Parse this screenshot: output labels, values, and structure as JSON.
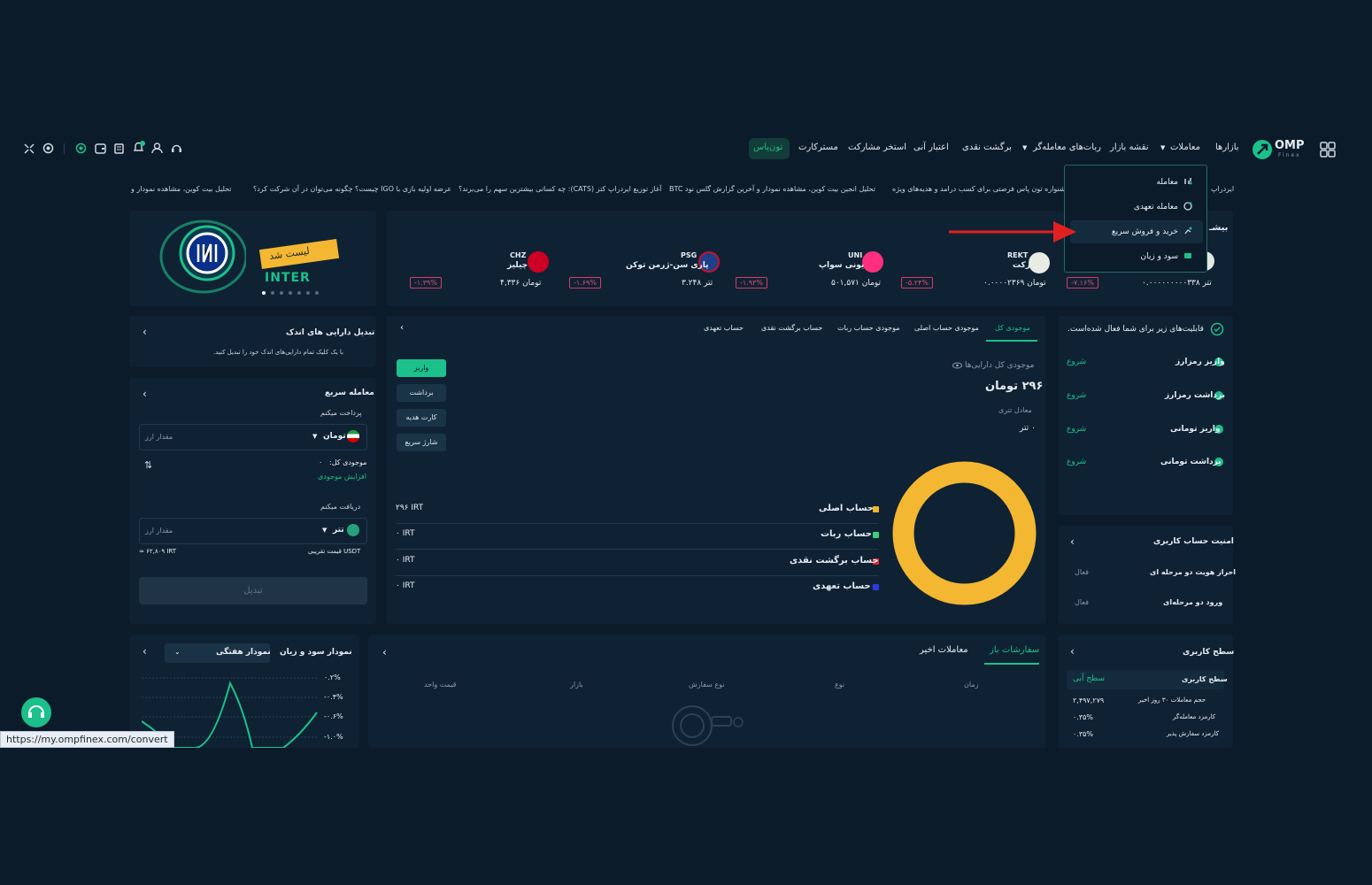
{
  "brand": {
    "logo_text": "OMP",
    "logo_sub": "Finex"
  },
  "nav": {
    "markets": "بازارها",
    "trades": "معاملات",
    "market_map": "نقشه بازار",
    "trading_bots": "ربات‌های معامله‌گر",
    "cashback": "برگشت نقدی",
    "instant_credit": "اعتبار آنی",
    "staking_pool": "استخر مشارکت",
    "mastercard": "مسترکارت",
    "toonpass": "تون‌پاس"
  },
  "ticker": [
    "تحلیل بیت کوین، مشاهده نمودار و",
    "عرضه اولیه بازی با IGO چیست؟ چگونه می‌توان در آن شرکت کرد؟",
    "آغاز توزیع ایردراپ کتز (CATS): چه کسانی بیشترین سهم را می‌برند؟",
    "تحلیل انجین بیت کوین، مشاهده نمودار و آخرین گزارش گلس نود BTC",
    "جشنواره تون پاس فرصتی برای کسب درامد و هدیه‌های ویژه",
    "ایردراپ"
  ],
  "dropdown": {
    "items": [
      "معامله",
      "معامله تعهدی",
      "خرید و فروش سریع",
      "سود و زیان"
    ]
  },
  "market_strip": {
    "section_title": "بیشـ",
    "coins": [
      {
        "symbol": "",
        "name": "",
        "price": "۰.۰۰۰۰۰۰۰۰۰۳۳۸ تتر",
        "change": "-۷.۱۶%"
      },
      {
        "symbol": "REKT",
        "name": "رکت",
        "price": "۰.۰۰۰۰۲۳۶۹ تومان",
        "change": "-۵.۲۴%"
      },
      {
        "symbol": "UNI",
        "name": "یونی سواپ",
        "price": "۵۰۱,۵۷۱ تومان",
        "change": "-۱.۹۳%"
      },
      {
        "symbol": "PSG",
        "name": "پاری سن-ژرمن توکن",
        "price": "۳.۲۴۸ تتر",
        "change": "-۱.۶۹%"
      },
      {
        "symbol": "CHZ",
        "name": "چیلیز",
        "price": "۴,۳۳۶ تومان",
        "change": "-۱.۳۹%"
      }
    ]
  },
  "banner": {
    "listed": "لیست شد",
    "coin": "INTER"
  },
  "activation": {
    "title": "قابلیت‌های زیر برای شما فعال شده‌است.",
    "items": [
      {
        "label": "واریز رمزارز",
        "action": "شروع"
      },
      {
        "label": "برداشت رمزارز",
        "action": "شروع"
      },
      {
        "label": "واریز تومانی",
        "action": "شروع"
      },
      {
        "label": "برداشت تومانی",
        "action": "شروع"
      }
    ]
  },
  "balance": {
    "tabs": [
      "موجودی کل",
      "موجودی حساب اصلی",
      "موجودی حساب ربات",
      "حساب برگشت نقدی",
      "حساب تعهدی"
    ],
    "total_label": "موجودی کل دارایی‌ها",
    "total_value": "۲۹۶ تومان",
    "tether_eq_label": "معادل تتری",
    "tether_eq_value": "۰ تتر",
    "buttons": [
      "واریز",
      "برداشت",
      "کارت هدیه",
      "شارژ سریع"
    ],
    "accounts": [
      {
        "name": "حساب اصلی",
        "value": "۲۹۶ IRT",
        "color": "#f0b92a"
      },
      {
        "name": "حساب ربات",
        "value": "۰ IRT",
        "color": "#3ad37a"
      },
      {
        "name": "حساب برگشت نقدی",
        "value": "۰ IRT",
        "color": "#e02828"
      },
      {
        "name": "حساب تعهدی",
        "value": "۰ IRT",
        "color": "#2a3be0"
      }
    ],
    "donut_color": "#f4b731"
  },
  "convert_small": {
    "title": "تبدیل دارایی های اندک",
    "desc": "با یک کلیک تمام دارایی‌های اندک خود را تبدیل کنید."
  },
  "quick_trade": {
    "title": "معامله سریع",
    "pay_label": "پرداخت میکنم",
    "pay_currency": "تومان",
    "amount_placeholder": "مقدار ارز",
    "balance_label": "موجودی کل:",
    "balance_value": "۰",
    "increase_balance": "افزایش موجودی",
    "receive_label": "دریافت میکنم",
    "receive_currency": "تتر",
    "approx_label": "قیمت تقریبی USDT",
    "approx_value": "≈ ۶۲,۸۰۹ IRT",
    "convert_button": "تبدیل"
  },
  "security": {
    "title": "امنیت حساب کاربری",
    "items": [
      {
        "label": "احراز هویت دو مرحله ای",
        "status": "فعال"
      },
      {
        "label": "ورود دو مرحله‌ای",
        "status": "فعال"
      }
    ]
  },
  "user_level": {
    "title": "سطح کاربری",
    "level_label": "سطح کاربری",
    "level_value": "سطح آبی",
    "rows": [
      {
        "label": "حجم معاملات ۳۰ روز اخیر",
        "value": "۲,۴۹۷,۲۷۹"
      },
      {
        "label": "کارمزد معامله‌گر",
        "value": "۰.۳۵%"
      },
      {
        "label": "کارمزد سفارش پذیر",
        "value": "۰.۳۵%"
      }
    ]
  },
  "orders": {
    "tabs": [
      "سفارشات باز",
      "معاملات اخیر"
    ],
    "columns": [
      "زمان",
      "نوع",
      "نوع سفارش",
      "بازار",
      "قیمت واحد"
    ]
  },
  "pnl": {
    "title": "نمودار سود و زیان",
    "range": "نمودار هفتگی",
    "yticks": [
      "۰.۲%",
      "-۰.۴%",
      "-۰.۶%",
      "-۱.۰%"
    ]
  },
  "status_url": "https://my.ompfinex.com/convert"
}
